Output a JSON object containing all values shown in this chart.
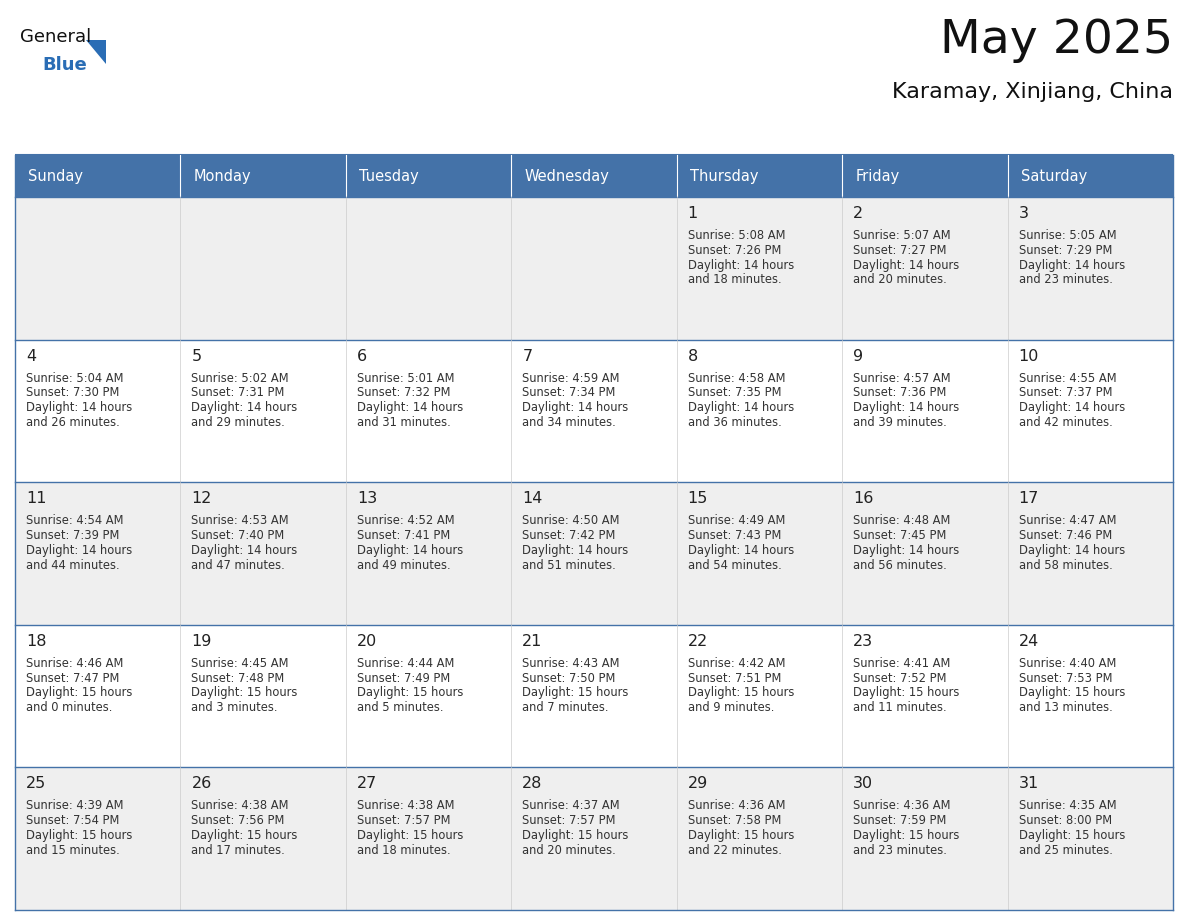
{
  "title": "May 2025",
  "subtitle": "Karamay, Xinjiang, China",
  "days_of_week": [
    "Sunday",
    "Monday",
    "Tuesday",
    "Wednesday",
    "Thursday",
    "Friday",
    "Saturday"
  ],
  "header_bg": "#4472a8",
  "header_text": "#ffffff",
  "cell_bg_odd": "#efefef",
  "cell_bg_even": "#ffffff",
  "cell_border": "#4472a8",
  "separator_color": "#4472a8",
  "day_num_color": "#222222",
  "info_color": "#333333",
  "title_color": "#111111",
  "subtitle_color": "#111111",
  "logo_general_color": "#111111",
  "logo_blue_color": "#2a6db5",
  "logo_triangle_color": "#2a6db5",
  "calendar": [
    [
      null,
      null,
      null,
      null,
      {
        "day": 1,
        "sunrise": "5:08 AM",
        "sunset": "7:26 PM",
        "hours": "14",
        "minutes": "18"
      },
      {
        "day": 2,
        "sunrise": "5:07 AM",
        "sunset": "7:27 PM",
        "hours": "14",
        "minutes": "20"
      },
      {
        "day": 3,
        "sunrise": "5:05 AM",
        "sunset": "7:29 PM",
        "hours": "14",
        "minutes": "23"
      }
    ],
    [
      {
        "day": 4,
        "sunrise": "5:04 AM",
        "sunset": "7:30 PM",
        "hours": "14",
        "minutes": "26"
      },
      {
        "day": 5,
        "sunrise": "5:02 AM",
        "sunset": "7:31 PM",
        "hours": "14",
        "minutes": "29"
      },
      {
        "day": 6,
        "sunrise": "5:01 AM",
        "sunset": "7:32 PM",
        "hours": "14",
        "minutes": "31"
      },
      {
        "day": 7,
        "sunrise": "4:59 AM",
        "sunset": "7:34 PM",
        "hours": "14",
        "minutes": "34"
      },
      {
        "day": 8,
        "sunrise": "4:58 AM",
        "sunset": "7:35 PM",
        "hours": "14",
        "minutes": "36"
      },
      {
        "day": 9,
        "sunrise": "4:57 AM",
        "sunset": "7:36 PM",
        "hours": "14",
        "minutes": "39"
      },
      {
        "day": 10,
        "sunrise": "4:55 AM",
        "sunset": "7:37 PM",
        "hours": "14",
        "minutes": "42"
      }
    ],
    [
      {
        "day": 11,
        "sunrise": "4:54 AM",
        "sunset": "7:39 PM",
        "hours": "14",
        "minutes": "44"
      },
      {
        "day": 12,
        "sunrise": "4:53 AM",
        "sunset": "7:40 PM",
        "hours": "14",
        "minutes": "47"
      },
      {
        "day": 13,
        "sunrise": "4:52 AM",
        "sunset": "7:41 PM",
        "hours": "14",
        "minutes": "49"
      },
      {
        "day": 14,
        "sunrise": "4:50 AM",
        "sunset": "7:42 PM",
        "hours": "14",
        "minutes": "51"
      },
      {
        "day": 15,
        "sunrise": "4:49 AM",
        "sunset": "7:43 PM",
        "hours": "14",
        "minutes": "54"
      },
      {
        "day": 16,
        "sunrise": "4:48 AM",
        "sunset": "7:45 PM",
        "hours": "14",
        "minutes": "56"
      },
      {
        "day": 17,
        "sunrise": "4:47 AM",
        "sunset": "7:46 PM",
        "hours": "14",
        "minutes": "58"
      }
    ],
    [
      {
        "day": 18,
        "sunrise": "4:46 AM",
        "sunset": "7:47 PM",
        "hours": "15",
        "minutes": "0"
      },
      {
        "day": 19,
        "sunrise": "4:45 AM",
        "sunset": "7:48 PM",
        "hours": "15",
        "minutes": "3"
      },
      {
        "day": 20,
        "sunrise": "4:44 AM",
        "sunset": "7:49 PM",
        "hours": "15",
        "minutes": "5"
      },
      {
        "day": 21,
        "sunrise": "4:43 AM",
        "sunset": "7:50 PM",
        "hours": "15",
        "minutes": "7"
      },
      {
        "day": 22,
        "sunrise": "4:42 AM",
        "sunset": "7:51 PM",
        "hours": "15",
        "minutes": "9"
      },
      {
        "day": 23,
        "sunrise": "4:41 AM",
        "sunset": "7:52 PM",
        "hours": "15",
        "minutes": "11"
      },
      {
        "day": 24,
        "sunrise": "4:40 AM",
        "sunset": "7:53 PM",
        "hours": "15",
        "minutes": "13"
      }
    ],
    [
      {
        "day": 25,
        "sunrise": "4:39 AM",
        "sunset": "7:54 PM",
        "hours": "15",
        "minutes": "15"
      },
      {
        "day": 26,
        "sunrise": "4:38 AM",
        "sunset": "7:56 PM",
        "hours": "15",
        "minutes": "17"
      },
      {
        "day": 27,
        "sunrise": "4:38 AM",
        "sunset": "7:57 PM",
        "hours": "15",
        "minutes": "18"
      },
      {
        "day": 28,
        "sunrise": "4:37 AM",
        "sunset": "7:57 PM",
        "hours": "15",
        "minutes": "20"
      },
      {
        "day": 29,
        "sunrise": "4:36 AM",
        "sunset": "7:58 PM",
        "hours": "15",
        "minutes": "22"
      },
      {
        "day": 30,
        "sunrise": "4:36 AM",
        "sunset": "7:59 PM",
        "hours": "15",
        "minutes": "23"
      },
      {
        "day": 31,
        "sunrise": "4:35 AM",
        "sunset": "8:00 PM",
        "hours": "15",
        "minutes": "25"
      }
    ]
  ]
}
